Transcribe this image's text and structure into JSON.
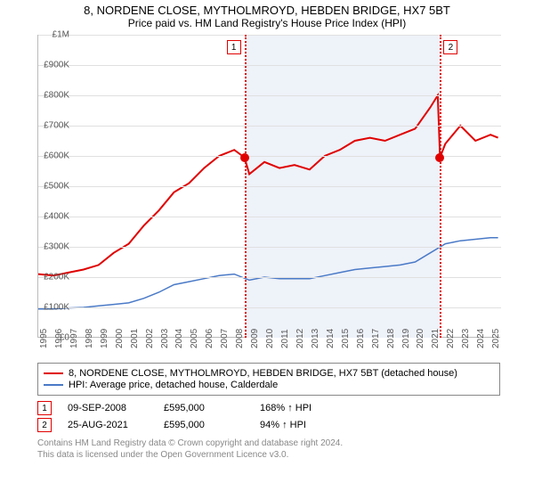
{
  "title": "8, NORDENE CLOSE, MYTHOLMROYD, HEBDEN BRIDGE, HX7 5BT",
  "subtitle": "Price paid vs. HM Land Registry's House Price Index (HPI)",
  "chart": {
    "type": "line",
    "xlim": [
      1995,
      2025.7
    ],
    "ylim": [
      0,
      1000000
    ],
    "ytick_step": 100000,
    "yticks": [
      "£0",
      "£100K",
      "£200K",
      "£300K",
      "£400K",
      "£500K",
      "£600K",
      "£700K",
      "£800K",
      "£900K",
      "£1M"
    ],
    "xticks": [
      1995,
      1996,
      1997,
      1998,
      1999,
      2000,
      2001,
      2002,
      2003,
      2004,
      2005,
      2006,
      2007,
      2008,
      2009,
      2010,
      2011,
      2012,
      2013,
      2014,
      2015,
      2016,
      2017,
      2018,
      2019,
      2020,
      2021,
      2022,
      2023,
      2024,
      2025
    ],
    "grid_color": "#e0e0e0",
    "background_color": "#ffffff",
    "shaded_region": {
      "from": 2008.68,
      "to": 2021.65,
      "fill": "#eef2f9"
    },
    "series": [
      {
        "name": "property",
        "label": "8, NORDENE CLOSE, MYTHOLMROYD, HEBDEN BRIDGE, HX7 5BT (detached house)",
        "color": "#e00000",
        "stroke_width": 2,
        "data": [
          [
            1995,
            210000
          ],
          [
            1996,
            205000
          ],
          [
            1997,
            215000
          ],
          [
            1998,
            225000
          ],
          [
            1999,
            240000
          ],
          [
            2000,
            280000
          ],
          [
            2001,
            310000
          ],
          [
            2002,
            370000
          ],
          [
            2003,
            420000
          ],
          [
            2004,
            480000
          ],
          [
            2005,
            510000
          ],
          [
            2006,
            560000
          ],
          [
            2007,
            600000
          ],
          [
            2008,
            620000
          ],
          [
            2008.68,
            595000
          ],
          [
            2009,
            540000
          ],
          [
            2010,
            580000
          ],
          [
            2011,
            560000
          ],
          [
            2012,
            570000
          ],
          [
            2013,
            555000
          ],
          [
            2014,
            600000
          ],
          [
            2015,
            620000
          ],
          [
            2016,
            650000
          ],
          [
            2017,
            660000
          ],
          [
            2018,
            650000
          ],
          [
            2019,
            670000
          ],
          [
            2020,
            690000
          ],
          [
            2021,
            760000
          ],
          [
            2021.5,
            800000
          ],
          [
            2021.65,
            595000
          ],
          [
            2022,
            640000
          ],
          [
            2023,
            700000
          ],
          [
            2024,
            650000
          ],
          [
            2025,
            670000
          ],
          [
            2025.5,
            660000
          ]
        ]
      },
      {
        "name": "hpi",
        "label": "HPI: Average price, detached house, Calderdale",
        "color": "#4a7ac7",
        "stroke_width": 1.5,
        "data": [
          [
            1995,
            95000
          ],
          [
            1996,
            95000
          ],
          [
            1997,
            98000
          ],
          [
            1998,
            100000
          ],
          [
            1999,
            105000
          ],
          [
            2000,
            110000
          ],
          [
            2001,
            115000
          ],
          [
            2002,
            130000
          ],
          [
            2003,
            150000
          ],
          [
            2004,
            175000
          ],
          [
            2005,
            185000
          ],
          [
            2006,
            195000
          ],
          [
            2007,
            205000
          ],
          [
            2008,
            210000
          ],
          [
            2009,
            190000
          ],
          [
            2010,
            200000
          ],
          [
            2011,
            195000
          ],
          [
            2012,
            195000
          ],
          [
            2013,
            195000
          ],
          [
            2014,
            205000
          ],
          [
            2015,
            215000
          ],
          [
            2016,
            225000
          ],
          [
            2017,
            230000
          ],
          [
            2018,
            235000
          ],
          [
            2019,
            240000
          ],
          [
            2020,
            250000
          ],
          [
            2021,
            280000
          ],
          [
            2022,
            310000
          ],
          [
            2023,
            320000
          ],
          [
            2024,
            325000
          ],
          [
            2025,
            330000
          ],
          [
            2025.5,
            330000
          ]
        ]
      }
    ],
    "markers": [
      {
        "n": "1",
        "x": 2008.68,
        "y": 595000,
        "dot": true
      },
      {
        "n": "2",
        "x": 2021.65,
        "y": 595000,
        "dot": true
      }
    ]
  },
  "legend": {
    "border_color": "#888888",
    "items": [
      {
        "color": "#e00000",
        "label": "8, NORDENE CLOSE, MYTHOLMROYD, HEBDEN BRIDGE, HX7 5BT (detached house)"
      },
      {
        "color": "#4a7ac7",
        "label": "HPI: Average price, detached house, Calderdale"
      }
    ]
  },
  "transactions": [
    {
      "n": "1",
      "date": "09-SEP-2008",
      "price": "£595,000",
      "pct": "168% ↑ HPI"
    },
    {
      "n": "2",
      "date": "25-AUG-2021",
      "price": "£595,000",
      "pct": "94% ↑ HPI"
    }
  ],
  "footer": {
    "line1": "Contains HM Land Registry data © Crown copyright and database right 2024.",
    "line2": "This data is licensed under the Open Government Licence v3.0."
  }
}
